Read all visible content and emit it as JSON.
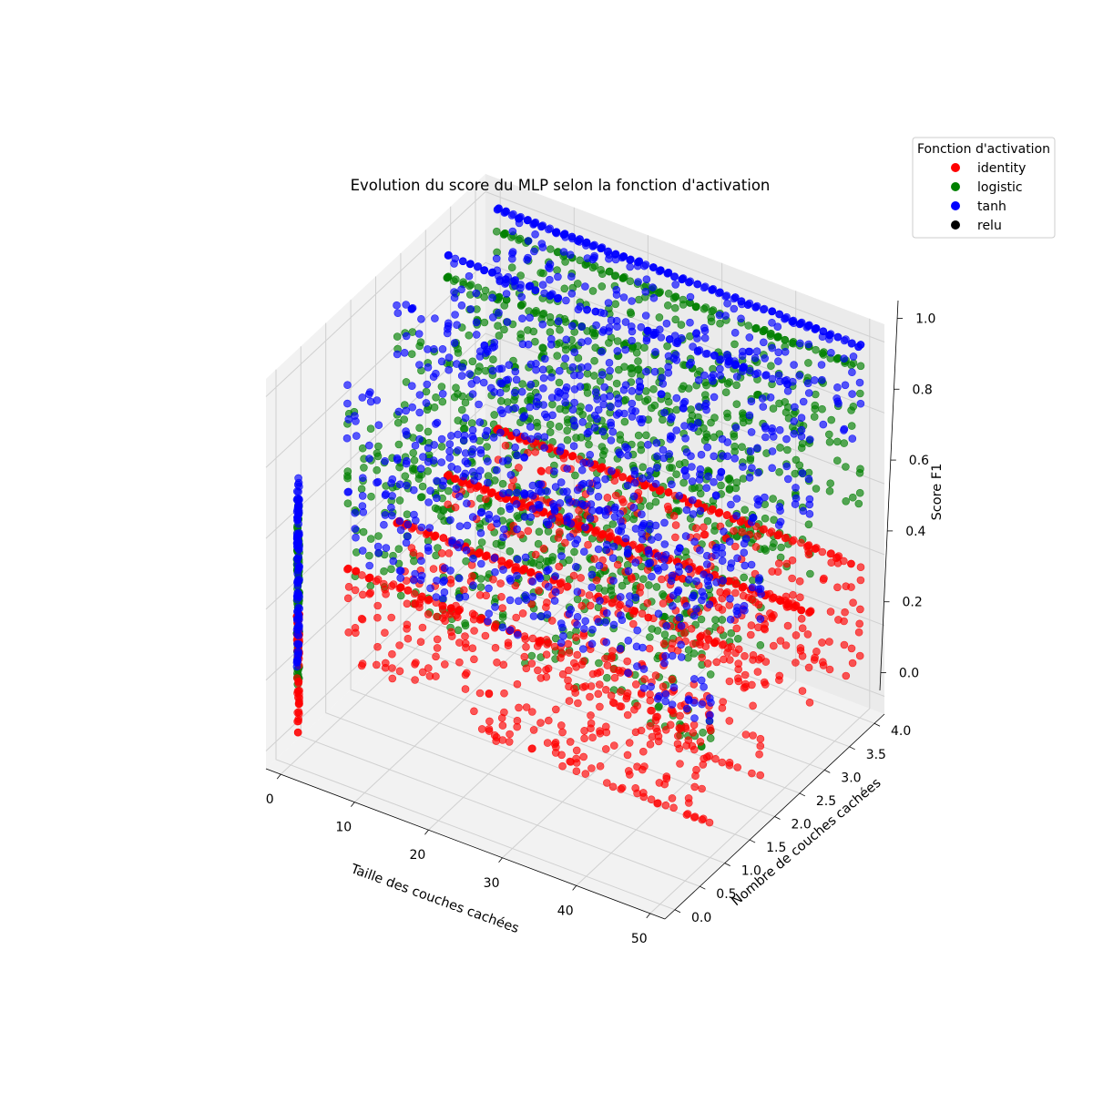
{
  "chart_data": {
    "type": "scatter",
    "projection": "3d",
    "title": "Evolution du score du MLP selon la fonction d'activation",
    "xlabel": "Taille des couches cachées",
    "ylabel": "Nombre de couches cachées",
    "zlabel": "Score F1",
    "xlim": [
      -2,
      52
    ],
    "ylim": [
      -0.2,
      4.2
    ],
    "zlim": [
      -0.05,
      1.05
    ],
    "x_ticks": [
      "0",
      "10",
      "20",
      "30",
      "40",
      "50"
    ],
    "y_ticks": [
      "0.0",
      "0.5",
      "1.0",
      "1.5",
      "2.0",
      "2.5",
      "3.0",
      "3.5",
      "4.0"
    ],
    "z_ticks": [
      "0.0",
      "0.2",
      "0.4",
      "0.6",
      "0.8",
      "1.0"
    ],
    "grid": true,
    "legend": {
      "title": "Fonction d'activation",
      "position": "top-right",
      "entries": [
        {
          "label": "identity",
          "color": "#ff0000"
        },
        {
          "label": "logistic",
          "color": "#008000"
        },
        {
          "label": "tanh",
          "color": "#0000ff"
        },
        {
          "label": "relu",
          "color": "#000000"
        }
      ]
    },
    "series": [
      {
        "name": "identity",
        "color": "#ff0000",
        "x_range": [
          1,
          50
        ],
        "layers": [
          0,
          1,
          2,
          3,
          4
        ],
        "score_center_by_layer": [
          0.33,
          0.28,
          0.33,
          0.45,
          0.38
        ],
        "score_spread": [
          0.05,
          0.38
        ]
      },
      {
        "name": "logistic",
        "color": "#008000",
        "x_range": [
          1,
          50
        ],
        "layers": [
          0,
          1,
          2,
          3,
          4
        ],
        "score_center_by_layer": [
          0.44,
          0.55,
          0.65,
          0.78,
          0.82
        ],
        "score_spread": [
          0.05,
          0.94
        ]
      },
      {
        "name": "tanh",
        "color": "#0000ff",
        "x_range": [
          1,
          50
        ],
        "layers": [
          0,
          1,
          2,
          3,
          4
        ],
        "score_center_by_layer": [
          0.5,
          0.62,
          0.75,
          0.88,
          1.0
        ],
        "score_spread": [
          0.0,
          1.0
        ]
      },
      {
        "name": "relu",
        "color": "#000000",
        "x_range": [],
        "layers": [],
        "score_center_by_layer": [],
        "score_spread": []
      }
    ]
  }
}
